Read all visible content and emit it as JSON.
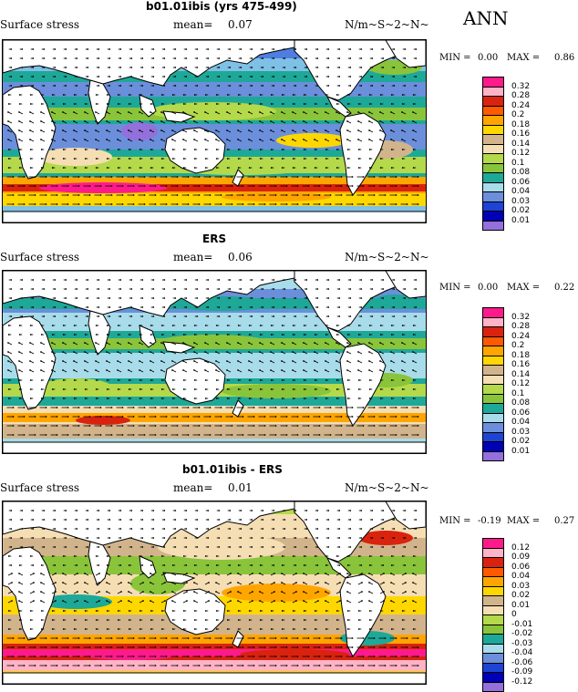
{
  "season": "ANN",
  "panels": [
    {
      "title": "b01.01ibis (yrs 475-499)",
      "variable": "Surface stress",
      "mean_label": "mean=",
      "mean_value": "0.07",
      "units": "N/m~S~2~N~",
      "min_label": "MIN =",
      "min_value": "0.00",
      "max_label": "MAX =",
      "max_value": "0.86",
      "legend": [
        "0.32",
        "0.28",
        "0.24",
        "0.2",
        "0.18",
        "0.16",
        "0.14",
        "0.12",
        "0.1",
        "0.08",
        "0.06",
        "0.04",
        "0.03",
        "0.02",
        "0.01"
      ],
      "legend_colors": [
        "#ff1a8c",
        "#ffb3c6",
        "#d9230f",
        "#ff5a00",
        "#ffa500",
        "#ffd700",
        "#d2b48c",
        "#f5deb3",
        "#b4d94a",
        "#8ac43a",
        "#1ea898",
        "#a8dcea",
        "#6b8fdb",
        "#1e44d6",
        "#0000b4",
        "#9370db"
      ],
      "regime": "model"
    },
    {
      "title": "ERS",
      "variable": "Surface stress",
      "mean_label": "mean=",
      "mean_value": "0.06",
      "units": "N/m~S~2~N~",
      "min_label": "MIN =",
      "min_value": "0.00",
      "max_label": "MAX =",
      "max_value": "0.22",
      "legend": [
        "0.32",
        "0.28",
        "0.24",
        "0.2",
        "0.18",
        "0.16",
        "0.14",
        "0.12",
        "0.1",
        "0.08",
        "0.06",
        "0.04",
        "0.03",
        "0.02",
        "0.01"
      ],
      "legend_colors": [
        "#ff1a8c",
        "#ffb3c6",
        "#d9230f",
        "#ff5a00",
        "#ffa500",
        "#ffd700",
        "#d2b48c",
        "#f5deb3",
        "#b4d94a",
        "#8ac43a",
        "#1ea898",
        "#a8dcea",
        "#6b8fdb",
        "#1e44d6",
        "#0000b4",
        "#9370db"
      ],
      "regime": "obs"
    },
    {
      "title": "b01.01ibis - ERS",
      "variable": "Surface stress",
      "mean_label": "mean=",
      "mean_value": "0.01",
      "units": "N/m~S~2~N~",
      "min_label": "MIN =",
      "min_value": "-0.19",
      "max_label": "MAX =",
      "max_value": "0.27",
      "legend": [
        "0.12",
        "0.09",
        "0.06",
        "0.04",
        "0.03",
        "0.02",
        "0.01",
        "0",
        "-0.01",
        "-0.02",
        "-0.03",
        "-0.04",
        "-0.06",
        "-0.09",
        "-0.12"
      ],
      "legend_colors": [
        "#ff1a8c",
        "#ffb3c6",
        "#d9230f",
        "#ff5a00",
        "#ffa500",
        "#ffd700",
        "#d2b48c",
        "#f5deb3",
        "#b4d94a",
        "#8ac43a",
        "#1ea898",
        "#a8dcea",
        "#6b8fdb",
        "#1e44d6",
        "#0000b4",
        "#9370db"
      ],
      "regime": "diff"
    }
  ]
}
